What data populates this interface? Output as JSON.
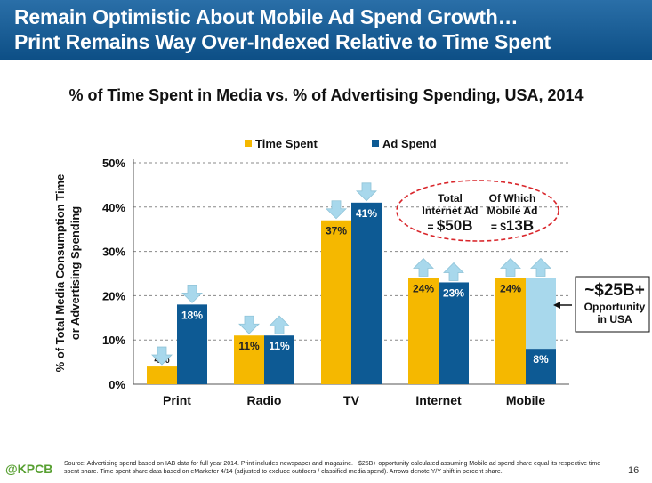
{
  "header": {
    "line1": "Remain Optimistic About Mobile Ad Spend Growth…",
    "line2": "Print Remains Way Over-Indexed Relative to Time Spent"
  },
  "chart_data": {
    "type": "bar",
    "title": "% of Time Spent in Media vs. % of Advertising Spending, USA, 2014",
    "ylabel_line1": "% of Total Media Consumption Time",
    "ylabel_line2": "or Advertising Spending",
    "ylim": [
      0,
      50
    ],
    "yticks": [
      0,
      10,
      20,
      30,
      40,
      50
    ],
    "ytick_labels": [
      "0%",
      "10%",
      "20%",
      "30%",
      "40%",
      "50%"
    ],
    "grid": true,
    "legend_position": "top",
    "categories": [
      "Print",
      "Radio",
      "TV",
      "Internet",
      "Mobile"
    ],
    "series": [
      {
        "name": "Time Spent",
        "color": "#f5b800",
        "values": [
          4,
          11,
          37,
          24,
          24
        ],
        "labels": [
          "4%",
          "11%",
          "37%",
          "24%",
          "24%"
        ],
        "arrows": [
          "down",
          "down",
          "down",
          "up",
          "up"
        ]
      },
      {
        "name": "Ad Spend",
        "color": "#0d5a94",
        "values": [
          18,
          11,
          41,
          23,
          8
        ],
        "labels": [
          "18%",
          "11%",
          "41%",
          "23%",
          "8%"
        ],
        "arrows": [
          "down",
          "up",
          "down",
          "up",
          "up"
        ]
      }
    ],
    "opportunity_bar": {
      "category": "Mobile",
      "from": 8,
      "to": 24,
      "color": "#a8d8ec"
    },
    "annotation_ellipse": {
      "left_line1": "Total",
      "left_line2": "Internet Ad",
      "left_prefix": "= ",
      "left_value": "$50B",
      "right_line1": "Of Which",
      "right_line2": "Mobile Ad",
      "right_prefix": "= $",
      "right_value": "13B"
    }
  },
  "callout": {
    "main": "~$25B+",
    "line1": "Opportunity",
    "line2": "in USA"
  },
  "footer": {
    "logo": "@KPCB",
    "source": "Source: Advertising spend based on IAB data for full year 2014. Print includes newspaper and magazine. ~$25B+ opportunity calculated assuming Mobile ad spend share equal its respective time spent share. Time spent share data based on eMarketer 4/14 (adjusted to exclude outdoors / classified media spend). Arrows denote Y/Y shift in percent share.",
    "page": "16"
  },
  "colors": {
    "header": "#0d4f86",
    "time_spent": "#f5b800",
    "ad_spend": "#0d5a94",
    "opportunity": "#a8d8ec",
    "arrow": "#a8d8ec",
    "ellipse": "#d9262b"
  }
}
